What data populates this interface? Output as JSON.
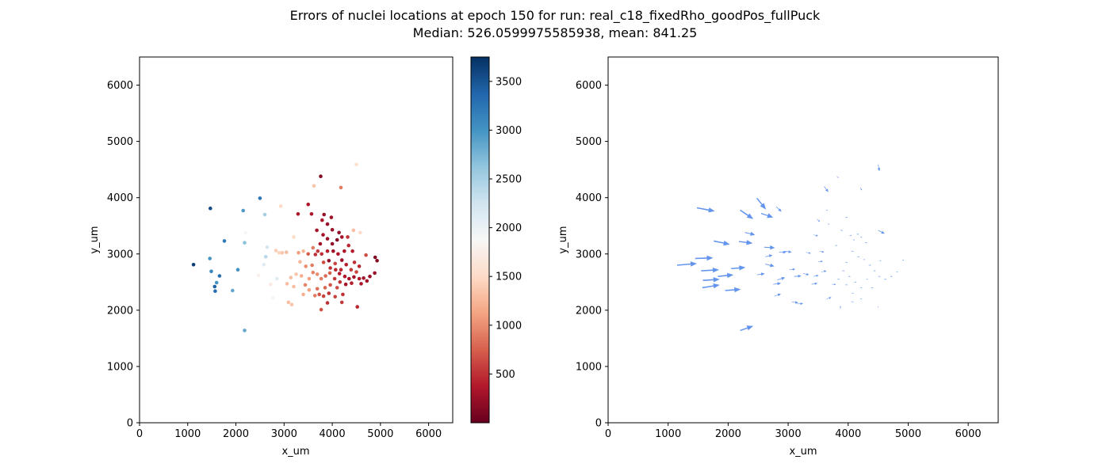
{
  "figure": {
    "title_line1": "Errors of nuclei locations at epoch 150 for run: real_c18_fixedRho_goodPos_fullPuck",
    "title_line2": "Median: 526.0599975585938, mean: 841.25"
  },
  "chart_data": [
    {
      "type": "scatter",
      "xlabel": "x_um",
      "ylabel": "y_um",
      "xlim": [
        0,
        6500
      ],
      "ylim": [
        0,
        6500
      ],
      "xticks": [
        0,
        1000,
        2000,
        3000,
        4000,
        5000,
        6000
      ],
      "yticks": [
        0,
        1000,
        2000,
        3000,
        4000,
        5000,
        6000
      ],
      "colormap": "RdBu",
      "colorbar": {
        "range": [
          0,
          3750
        ],
        "ticks": [
          500,
          1000,
          1500,
          2000,
          2500,
          3000,
          3500
        ]
      },
      "points": [
        [
          1120,
          2810,
          3650
        ],
        [
          1470,
          3810,
          3550
        ],
        [
          2500,
          3990,
          3250
        ],
        [
          2150,
          3770,
          2950
        ],
        [
          1460,
          2920,
          3000
        ],
        [
          1490,
          2690,
          3100
        ],
        [
          1660,
          2610,
          3300
        ],
        [
          1560,
          2420,
          3400
        ],
        [
          1600,
          2490,
          3000
        ],
        [
          1570,
          2340,
          3300
        ],
        [
          1760,
          3230,
          3200
        ],
        [
          2040,
          2720,
          3000
        ],
        [
          1930,
          2350,
          2850
        ],
        [
          2180,
          3200,
          2650
        ],
        [
          2600,
          3700,
          2500
        ],
        [
          2180,
          1640,
          2850
        ],
        [
          2200,
          3380,
          1900
        ],
        [
          2620,
          2950,
          2400
        ],
        [
          2650,
          3120,
          2200
        ],
        [
          2470,
          2620,
          1800
        ],
        [
          2850,
          2560,
          2100
        ],
        [
          2580,
          2810,
          2100
        ],
        [
          2720,
          2460,
          1700
        ],
        [
          2930,
          3850,
          1500
        ],
        [
          2770,
          2220,
          1900
        ],
        [
          2830,
          3060,
          1400
        ],
        [
          2960,
          3020,
          1350
        ],
        [
          3050,
          3030,
          1300
        ],
        [
          2900,
          3020,
          1450
        ],
        [
          3090,
          2140,
          1300
        ],
        [
          3160,
          2100,
          1350
        ],
        [
          3200,
          3300,
          1500
        ],
        [
          3620,
          4210,
          1350
        ],
        [
          4180,
          4180,
          900
        ],
        [
          4500,
          4590,
          1550
        ],
        [
          3760,
          4380,
          150
        ],
        [
          3500,
          3880,
          350
        ],
        [
          3290,
          3710,
          350
        ],
        [
          3570,
          3710,
          350
        ],
        [
          3790,
          3600,
          350
        ],
        [
          3680,
          3420,
          300
        ],
        [
          3810,
          3340,
          300
        ],
        [
          3900,
          3270,
          250
        ],
        [
          4000,
          3180,
          200
        ],
        [
          4100,
          3250,
          150
        ],
        [
          4200,
          3300,
          300
        ],
        [
          4020,
          3050,
          280
        ],
        [
          4120,
          3000,
          350
        ],
        [
          3930,
          2880,
          220
        ],
        [
          4200,
          2890,
          260
        ],
        [
          4340,
          3150,
          450
        ],
        [
          4440,
          3420,
          1300
        ],
        [
          4580,
          3380,
          1500
        ],
        [
          4250,
          3050,
          350
        ],
        [
          3750,
          3180,
          280
        ],
        [
          3650,
          2990,
          500
        ],
        [
          3500,
          3000,
          750
        ],
        [
          3300,
          3020,
          1100
        ],
        [
          3400,
          3050,
          1250
        ],
        [
          3600,
          3110,
          900
        ],
        [
          3700,
          3050,
          550
        ],
        [
          3820,
          2850,
          650
        ],
        [
          3960,
          2750,
          500
        ],
        [
          4070,
          2720,
          450
        ],
        [
          4150,
          2650,
          400
        ],
        [
          4260,
          2600,
          350
        ],
        [
          4350,
          2560,
          300
        ],
        [
          4450,
          2590,
          300
        ],
        [
          4560,
          2560,
          350
        ],
        [
          4650,
          2570,
          300
        ],
        [
          4780,
          2600,
          250
        ],
        [
          4880,
          2660,
          250
        ],
        [
          4930,
          2880,
          150
        ],
        [
          4890,
          2940,
          150
        ],
        [
          4700,
          2980,
          650
        ],
        [
          4500,
          2680,
          600
        ],
        [
          4390,
          2720,
          550
        ],
        [
          4290,
          2810,
          400
        ],
        [
          4180,
          2720,
          450
        ],
        [
          4060,
          2830,
          600
        ],
        [
          3950,
          2660,
          750
        ],
        [
          3860,
          2610,
          800
        ],
        [
          3770,
          2560,
          900
        ],
        [
          3690,
          2640,
          1000
        ],
        [
          3600,
          2670,
          950
        ],
        [
          3520,
          2560,
          1100
        ],
        [
          3440,
          2450,
          950
        ],
        [
          3360,
          2610,
          1200
        ],
        [
          3250,
          2640,
          1350
        ],
        [
          3140,
          2580,
          1300
        ],
        [
          3060,
          2470,
          1300
        ],
        [
          3400,
          2280,
          1200
        ],
        [
          3520,
          2360,
          1100
        ],
        [
          3690,
          2380,
          850
        ],
        [
          3820,
          2250,
          600
        ],
        [
          3930,
          2300,
          500
        ],
        [
          4060,
          2240,
          600
        ],
        [
          4220,
          2280,
          500
        ],
        [
          4100,
          2400,
          650
        ],
        [
          3960,
          2450,
          700
        ],
        [
          3850,
          2400,
          800
        ],
        [
          3730,
          2280,
          700
        ],
        [
          3640,
          2260,
          900
        ],
        [
          3900,
          2130,
          500
        ],
        [
          4200,
          2140,
          550
        ],
        [
          4520,
          2060,
          450
        ],
        [
          3770,
          2010,
          700
        ],
        [
          4000,
          3430,
          250
        ],
        [
          4140,
          3380,
          200
        ],
        [
          3900,
          3530,
          220
        ],
        [
          3830,
          3700,
          250
        ],
        [
          3980,
          3650,
          280
        ],
        [
          4280,
          2460,
          300
        ],
        [
          4400,
          2480,
          400
        ],
        [
          4600,
          2470,
          350
        ],
        [
          4720,
          2520,
          300
        ],
        [
          3580,
          2800,
          900
        ],
        [
          3450,
          2780,
          1000
        ],
        [
          3330,
          2860,
          1250
        ],
        [
          4460,
          2850,
          500
        ],
        [
          4560,
          2780,
          450
        ],
        [
          4050,
          2560,
          550
        ],
        [
          4160,
          2500,
          500
        ],
        [
          3900,
          3050,
          400
        ],
        [
          3780,
          3000,
          500
        ],
        [
          4320,
          3300,
          500
        ],
        [
          4420,
          3050,
          400
        ],
        [
          3200,
          2420,
          1300
        ]
      ]
    },
    {
      "type": "quiver",
      "xlabel": "x_um",
      "ylabel": "y_um",
      "xlim": [
        0,
        6500
      ],
      "ylim": [
        0,
        6500
      ],
      "xticks": [
        0,
        1000,
        2000,
        3000,
        4000,
        5000,
        6000
      ],
      "yticks": [
        0,
        1000,
        2000,
        3000,
        4000,
        5000,
        6000
      ],
      "arrow_color": "#6495ed",
      "arrows": [
        [
          1150,
          2800,
          330,
          30
        ],
        [
          1450,
          2920,
          300,
          10
        ],
        [
          1480,
          3820,
          300,
          -60
        ],
        [
          1550,
          2700,
          300,
          20
        ],
        [
          1580,
          2530,
          280,
          20
        ],
        [
          1570,
          2400,
          290,
          50
        ],
        [
          1760,
          3230,
          270,
          -60
        ],
        [
          1830,
          2600,
          260,
          30
        ],
        [
          1950,
          2350,
          260,
          20
        ],
        [
          2050,
          2740,
          240,
          20
        ],
        [
          2180,
          3220,
          230,
          -30
        ],
        [
          2200,
          3780,
          220,
          -160
        ],
        [
          2200,
          1640,
          220,
          80
        ],
        [
          2280,
          3380,
          170,
          -40
        ],
        [
          2480,
          3990,
          150,
          -200
        ],
        [
          2550,
          3720,
          200,
          -70
        ],
        [
          2480,
          2630,
          130,
          20
        ],
        [
          2600,
          3120,
          180,
          -10
        ],
        [
          2620,
          2950,
          120,
          30
        ],
        [
          2620,
          2820,
          150,
          -40
        ],
        [
          2750,
          2460,
          130,
          20
        ],
        [
          2820,
          2540,
          130,
          40
        ],
        [
          2770,
          2250,
          110,
          40
        ],
        [
          2800,
          3840,
          90,
          -90
        ],
        [
          2850,
          3030,
          120,
          0
        ],
        [
          2940,
          3050,
          120,
          -20
        ],
        [
          3020,
          2720,
          100,
          10
        ],
        [
          3060,
          2150,
          110,
          -20
        ],
        [
          3150,
          2110,
          100,
          10
        ],
        [
          3100,
          2600,
          120,
          10
        ],
        [
          3250,
          2650,
          100,
          -20
        ],
        [
          3300,
          3030,
          80,
          -20
        ],
        [
          3390,
          2460,
          100,
          20
        ],
        [
          3420,
          2600,
          90,
          20
        ],
        [
          3500,
          2860,
          80,
          10
        ],
        [
          3550,
          2680,
          90,
          20
        ],
        [
          3480,
          3620,
          50,
          -50
        ],
        [
          3600,
          4200,
          70,
          -100
        ],
        [
          3810,
          4380,
          30,
          -30
        ],
        [
          4200,
          4180,
          30,
          -50
        ],
        [
          4500,
          4590,
          20,
          -120
        ],
        [
          4500,
          3420,
          110,
          -60
        ],
        [
          3420,
          3340,
          80,
          -20
        ],
        [
          3520,
          3050,
          80,
          -20
        ],
        [
          3640,
          2200,
          80,
          30
        ],
        [
          3730,
          2460,
          70,
          0
        ],
        [
          3870,
          2020,
          0,
          60
        ],
        [
          3630,
          3780,
          30,
          0
        ],
        [
          3660,
          3530,
          30,
          0
        ],
        [
          3870,
          3430,
          40,
          -20
        ],
        [
          3950,
          3650,
          40,
          0
        ],
        [
          4020,
          3330,
          40,
          0
        ],
        [
          4080,
          3250,
          30,
          0
        ],
        [
          4140,
          3350,
          40,
          0
        ],
        [
          4200,
          3300,
          30,
          0
        ],
        [
          4280,
          3200,
          40,
          0
        ],
        [
          4050,
          3050,
          40,
          0
        ],
        [
          4150,
          2950,
          40,
          0
        ],
        [
          4250,
          2900,
          30,
          0
        ],
        [
          4340,
          2800,
          40,
          0
        ],
        [
          4420,
          2700,
          40,
          0
        ],
        [
          4500,
          2600,
          40,
          0
        ],
        [
          4600,
          2550,
          40,
          0
        ],
        [
          4700,
          2600,
          40,
          0
        ],
        [
          4800,
          2680,
          30,
          0
        ],
        [
          4900,
          2890,
          30,
          0
        ],
        [
          3900,
          2700,
          40,
          0
        ],
        [
          4000,
          2600,
          40,
          0
        ],
        [
          4100,
          2500,
          40,
          0
        ],
        [
          4200,
          2400,
          30,
          0
        ],
        [
          4300,
          2550,
          30,
          0
        ],
        [
          3950,
          2450,
          40,
          0
        ],
        [
          3820,
          2550,
          40,
          0
        ],
        [
          4060,
          2300,
          30,
          0
        ],
        [
          4200,
          2200,
          30,
          0
        ],
        [
          4500,
          2050,
          0,
          20
        ],
        [
          3780,
          3150,
          40,
          0
        ],
        [
          3950,
          2850,
          40,
          0
        ],
        [
          4050,
          2150,
          40,
          0
        ],
        [
          4380,
          2400,
          40,
          0
        ],
        [
          4520,
          2880,
          30,
          0
        ]
      ]
    }
  ]
}
